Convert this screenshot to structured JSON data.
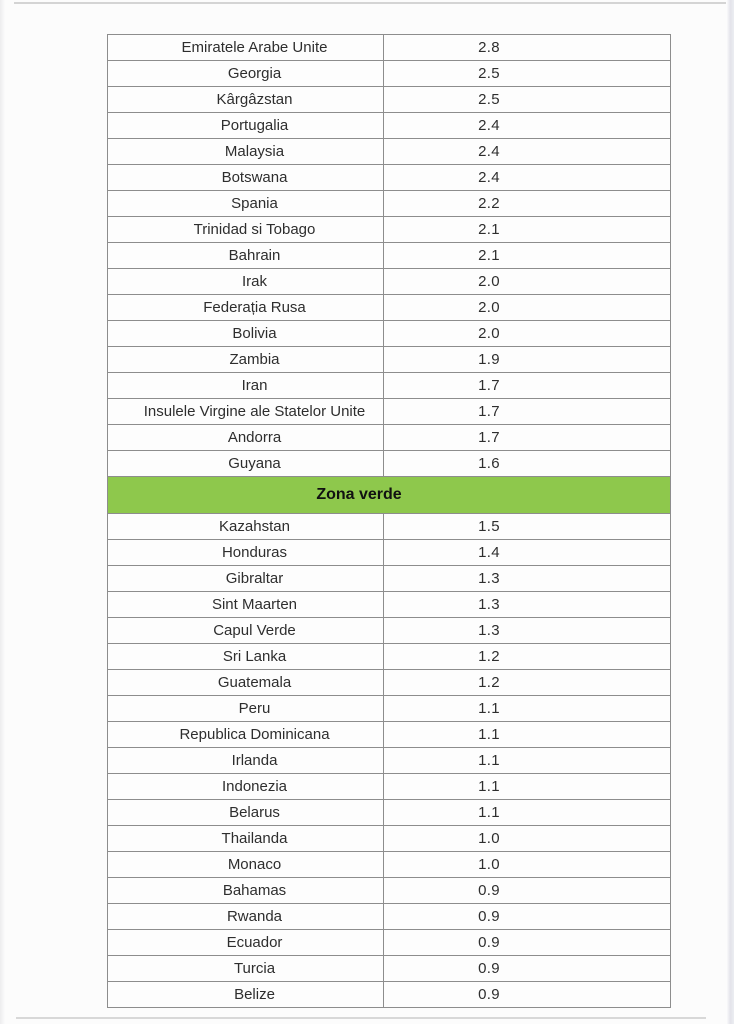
{
  "document": {
    "kind": "scanned-table-page",
    "zone_banner": {
      "label": "Zona verde"
    }
  },
  "colors": {
    "zone_green": "#8ec84c",
    "table_border": "#8d8d8d",
    "text": "#2e2e2e"
  },
  "table": {
    "columns": [
      "country",
      "value"
    ],
    "rows": [
      {
        "type": "country",
        "name": "Emiratele Arabe Unite",
        "value": "2.8"
      },
      {
        "type": "country",
        "name": "Georgia",
        "value": "2.5"
      },
      {
        "type": "country",
        "name": "Kârgâzstan",
        "value": "2.5"
      },
      {
        "type": "country",
        "name": "Portugalia",
        "value": "2.4"
      },
      {
        "type": "country",
        "name": "Malaysia",
        "value": "2.4"
      },
      {
        "type": "country",
        "name": "Botswana",
        "value": "2.4"
      },
      {
        "type": "country",
        "name": "Spania",
        "value": "2.2"
      },
      {
        "type": "country",
        "name": "Trinidad si Tobago",
        "value": "2.1"
      },
      {
        "type": "country",
        "name": "Bahrain",
        "value": "2.1"
      },
      {
        "type": "country",
        "name": "Irak",
        "value": "2.0"
      },
      {
        "type": "country",
        "name": "Federația Rusa",
        "value": "2.0"
      },
      {
        "type": "country",
        "name": "Bolivia",
        "value": "2.0"
      },
      {
        "type": "country",
        "name": "Zambia",
        "value": "1.9"
      },
      {
        "type": "country",
        "name": "Iran",
        "value": "1.7"
      },
      {
        "type": "country",
        "name": "Insulele Virgine ale Statelor Unite",
        "value": "1.7"
      },
      {
        "type": "country",
        "name": "Andorra",
        "value": "1.7"
      },
      {
        "type": "country",
        "name": "Guyana",
        "value": "1.6"
      },
      {
        "type": "zone",
        "label": "Zona verde"
      },
      {
        "type": "country",
        "name": "Kazahstan",
        "value": "1.5"
      },
      {
        "type": "country",
        "name": "Honduras",
        "value": "1.4"
      },
      {
        "type": "country",
        "name": "Gibraltar",
        "value": "1.3"
      },
      {
        "type": "country",
        "name": "Sint Maarten",
        "value": "1.3"
      },
      {
        "type": "country",
        "name": "Capul Verde",
        "value": "1.3"
      },
      {
        "type": "country",
        "name": "Sri Lanka",
        "value": "1.2"
      },
      {
        "type": "country",
        "name": "Guatemala",
        "value": "1.2"
      },
      {
        "type": "country",
        "name": "Peru",
        "value": "1.1"
      },
      {
        "type": "country",
        "name": "Republica Dominicana",
        "value": "1.1"
      },
      {
        "type": "country",
        "name": "Irlanda",
        "value": "1.1"
      },
      {
        "type": "country",
        "name": "Indonezia",
        "value": "1.1"
      },
      {
        "type": "country",
        "name": "Belarus",
        "value": "1.1"
      },
      {
        "type": "country",
        "name": "Thailanda",
        "value": "1.0"
      },
      {
        "type": "country",
        "name": "Monaco",
        "value": "1.0"
      },
      {
        "type": "country",
        "name": "Bahamas",
        "value": "0.9"
      },
      {
        "type": "country",
        "name": "Rwanda",
        "value": "0.9"
      },
      {
        "type": "country",
        "name": "Ecuador",
        "value": "0.9"
      },
      {
        "type": "country",
        "name": "Turcia",
        "value": "0.9"
      },
      {
        "type": "country",
        "name": "Belize",
        "value": "0.9"
      }
    ]
  }
}
